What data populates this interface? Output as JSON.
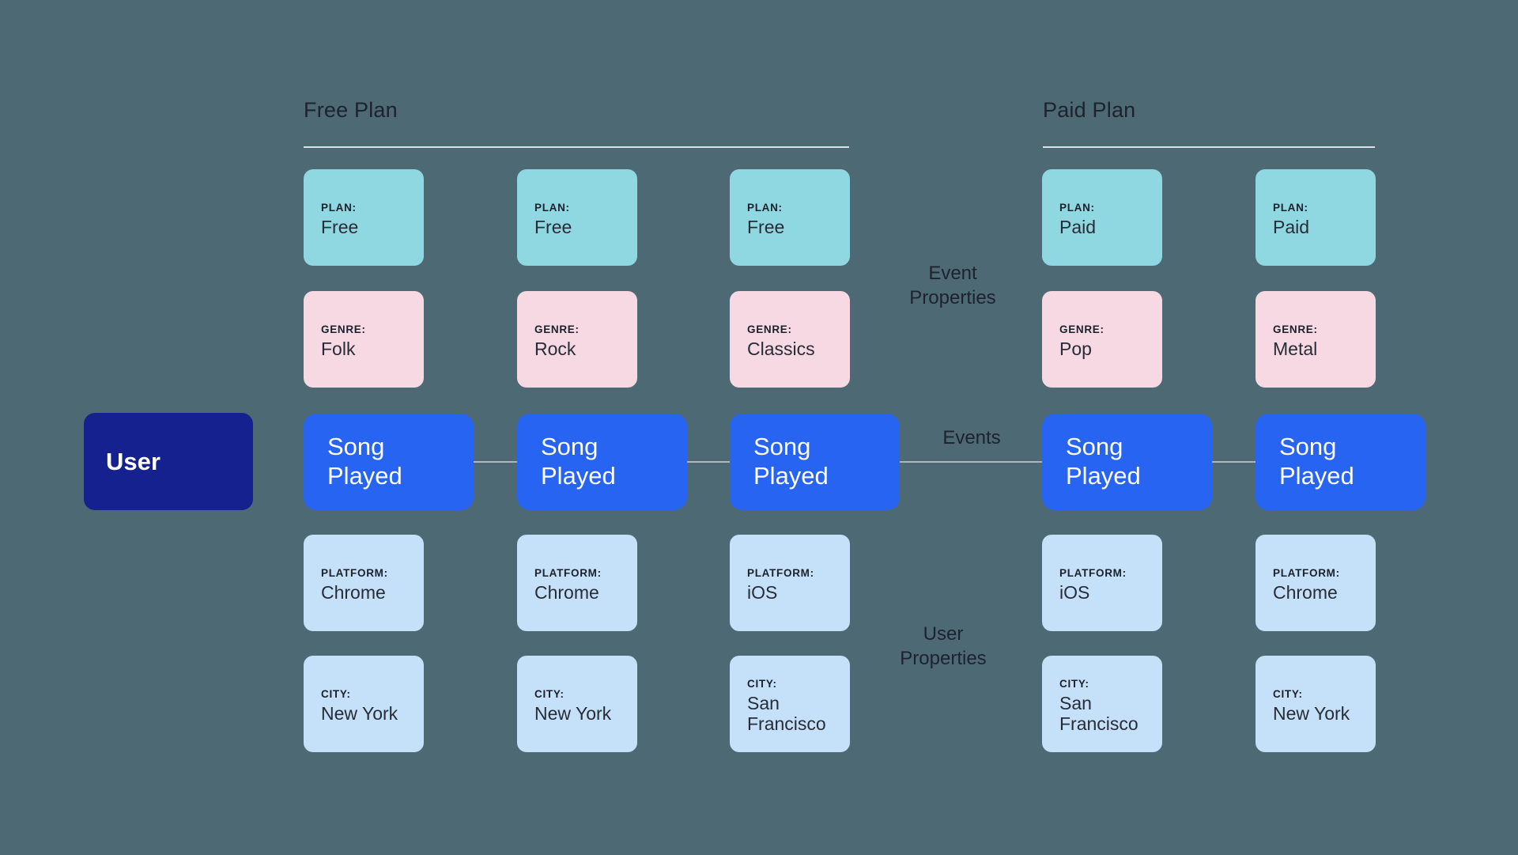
{
  "sections": {
    "free": {
      "title": "Free Plan"
    },
    "paid": {
      "title": "Paid Plan"
    }
  },
  "user": {
    "label": "User"
  },
  "axis_labels": {
    "event_properties": "Event Properties",
    "events": "Events",
    "user_properties": "User Properties"
  },
  "field_labels": {
    "plan": "PLAN:",
    "genre": "GENRE:",
    "platform": "PLATFORM:",
    "city": "CITY:"
  },
  "event_label": "Song Played",
  "columns": [
    {
      "group": "free",
      "plan": "Free",
      "genre": "Folk",
      "platform": "Chrome",
      "city": "New York"
    },
    {
      "group": "free",
      "plan": "Free",
      "genre": "Rock",
      "platform": "Chrome",
      "city": "New York"
    },
    {
      "group": "free",
      "plan": "Free",
      "genre": "Classics",
      "platform": "iOS",
      "city": "San Francisco"
    },
    {
      "group": "paid",
      "plan": "Paid",
      "genre": "Pop",
      "platform": "iOS",
      "city": "San Francisco"
    },
    {
      "group": "paid",
      "plan": "Paid",
      "genre": "Metal",
      "platform": "Chrome",
      "city": "New York"
    }
  ],
  "colors": {
    "background": "#4D6A74",
    "user_box": "#15218F",
    "event_box": "#2764F1",
    "plan_box": "#8FD8E2",
    "genre_box": "#F6D9E2",
    "user_property_box": "#C5E1F9",
    "dark_text": "#1D222E",
    "connector_line": "#AEB7C0",
    "section_underline": "#DCE1E7"
  }
}
